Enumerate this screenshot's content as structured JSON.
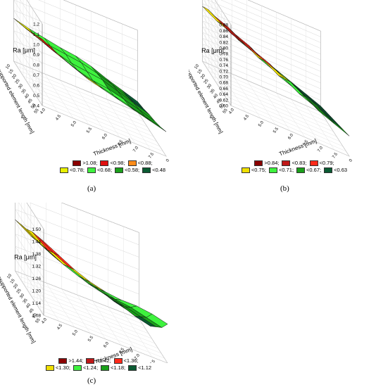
{
  "chart_data": [
    {
      "panel": "(a)",
      "type": "surface",
      "zlabel": "Ra [μm]",
      "xlabel": "Thickness [mm]",
      "ylabel": "Unsupported element length [mm]",
      "z_ticks": [
        "0.4",
        "0.5",
        "0.6",
        "0.7",
        "0.8",
        "0.9",
        "1.0",
        "1.1",
        "1.2"
      ],
      "x_ticks": [
        "4.0",
        "4.5",
        "5.0",
        "5.5",
        "6.0",
        "6.5",
        "7.0",
        "7.5",
        "8.0"
      ],
      "y_ticks": [
        "10",
        "15",
        "20",
        "25",
        "30",
        "35",
        "40",
        "45",
        "50",
        "55"
      ],
      "grid": [
        [
          1.05,
          0.97,
          0.9,
          0.84,
          0.8,
          0.76,
          0.72,
          0.68,
          0.64
        ],
        [
          1.0,
          0.92,
          0.86,
          0.8,
          0.76,
          0.72,
          0.68,
          0.64,
          0.6
        ],
        [
          0.95,
          0.88,
          0.82,
          0.76,
          0.72,
          0.7,
          0.66,
          0.62,
          0.57
        ],
        [
          0.9,
          0.84,
          0.78,
          0.74,
          0.72,
          0.7,
          0.65,
          0.6,
          0.55
        ],
        [
          0.86,
          0.8,
          0.76,
          0.74,
          0.72,
          0.68,
          0.63,
          0.57,
          0.52
        ],
        [
          0.82,
          0.78,
          0.75,
          0.72,
          0.7,
          0.66,
          0.6,
          0.55,
          0.5
        ]
      ],
      "legend": [
        {
          "label": ">1.08;",
          "color": "#8b0000"
        },
        {
          "label": "<0.98;",
          "color": "#e01010"
        },
        {
          "label": "<0.88;",
          "color": "#ff8c1a"
        },
        {
          "label": "<0.78;",
          "color": "#e8f000"
        },
        {
          "label": "<0.68;",
          "color": "#3ef23e"
        },
        {
          "label": "<0.58;",
          "color": "#1aa01a"
        },
        {
          "label": "<0.48",
          "color": "#0a5a32"
        }
      ],
      "thresholds": [
        1.08,
        0.98,
        0.88,
        0.78,
        0.68,
        0.58
      ],
      "caption": "(a)"
    },
    {
      "panel": "(b)",
      "type": "surface",
      "zlabel": "Ra [μm]",
      "xlabel": "Thickness [mm]",
      "ylabel": "Unsupported element length [mm]",
      "z_ticks": [
        "0.60",
        "0.62",
        "0.64",
        "0.66",
        "0.68",
        "0.70",
        "0.72",
        "0.74",
        "0.76",
        "0.78",
        "0.80",
        "0.82",
        "0.84",
        "0.86",
        "0.88"
      ],
      "x_ticks": [
        "4.0",
        "4.5",
        "5.0",
        "5.5",
        "6.0",
        "6.5",
        "7.0",
        "7.5",
        "8.0"
      ],
      "y_ticks": [
        "10",
        "15",
        "20",
        "25",
        "30",
        "35",
        "40",
        "45",
        "50",
        "55"
      ],
      "grid": [
        [
          0.85,
          0.83,
          0.81,
          0.79,
          0.77,
          0.74,
          0.71,
          0.69,
          0.67
        ],
        [
          0.84,
          0.82,
          0.8,
          0.78,
          0.75,
          0.72,
          0.7,
          0.68,
          0.66
        ],
        [
          0.83,
          0.81,
          0.79,
          0.76,
          0.73,
          0.71,
          0.69,
          0.67,
          0.65
        ],
        [
          0.82,
          0.8,
          0.77,
          0.74,
          0.72,
          0.7,
          0.68,
          0.66,
          0.64
        ],
        [
          0.81,
          0.78,
          0.75,
          0.73,
          0.71,
          0.69,
          0.67,
          0.65,
          0.63
        ],
        [
          0.79,
          0.76,
          0.74,
          0.72,
          0.7,
          0.68,
          0.66,
          0.64,
          0.62
        ]
      ],
      "legend": [
        {
          "label": ">0.84;",
          "color": "#8b0000"
        },
        {
          "label": "<0.83;",
          "color": "#c01818"
        },
        {
          "label": "<0.79;",
          "color": "#ff2a1a"
        },
        {
          "label": "<0.75;",
          "color": "#f0e000"
        },
        {
          "label": "<0.71;",
          "color": "#3ef23e"
        },
        {
          "label": "<0.67;",
          "color": "#1aa01a"
        },
        {
          "label": "<0.63",
          "color": "#0a5a32"
        }
      ],
      "thresholds": [
        0.84,
        0.83,
        0.79,
        0.75,
        0.71,
        0.67
      ],
      "caption": "(b)"
    },
    {
      "panel": "(c)",
      "type": "surface",
      "zlabel": "Ra [μm]",
      "xlabel": "Thickness [mm]",
      "ylabel": "Unsupported element length [mm]",
      "z_ticks": [
        "1.08",
        "1.14",
        "1.20",
        "1.26",
        "1.32",
        "1.38",
        "1.44",
        "1.50"
      ],
      "x_ticks": [
        "4.0",
        "4.5",
        "5.0",
        "5.5",
        "6.0",
        "6.5",
        "7.0",
        "7.5",
        "8.0"
      ],
      "y_ticks": [
        "10",
        "15",
        "20",
        "25",
        "30",
        "35",
        "40",
        "45",
        "50",
        "55"
      ],
      "grid": [
        [
          1.44,
          1.4,
          1.36,
          1.33,
          1.31,
          1.3,
          1.3,
          1.29,
          1.27
        ],
        [
          1.42,
          1.37,
          1.33,
          1.3,
          1.28,
          1.26,
          1.25,
          1.23,
          1.21
        ],
        [
          1.4,
          1.34,
          1.3,
          1.27,
          1.25,
          1.23,
          1.21,
          1.19,
          1.17
        ],
        [
          1.37,
          1.32,
          1.28,
          1.25,
          1.22,
          1.2,
          1.18,
          1.15,
          1.13
        ],
        [
          1.35,
          1.3,
          1.26,
          1.23,
          1.2,
          1.18,
          1.15,
          1.13,
          1.11
        ],
        [
          1.33,
          1.28,
          1.25,
          1.22,
          1.19,
          1.16,
          1.14,
          1.12,
          1.1
        ]
      ],
      "legend": [
        {
          "label": ">1.44;",
          "color": "#8b0000"
        },
        {
          "label": "<1.42;",
          "color": "#c01818"
        },
        {
          "label": "<1.36;",
          "color": "#ff2a1a"
        },
        {
          "label": "<1.30;",
          "color": "#f0e000"
        },
        {
          "label": "<1.24;",
          "color": "#3ef23e"
        },
        {
          "label": "<1.18;",
          "color": "#1aa01a"
        },
        {
          "label": "<1.12",
          "color": "#0a5a32"
        }
      ],
      "thresholds": [
        1.44,
        1.42,
        1.36,
        1.3,
        1.24,
        1.18
      ],
      "caption": "(c)"
    }
  ]
}
